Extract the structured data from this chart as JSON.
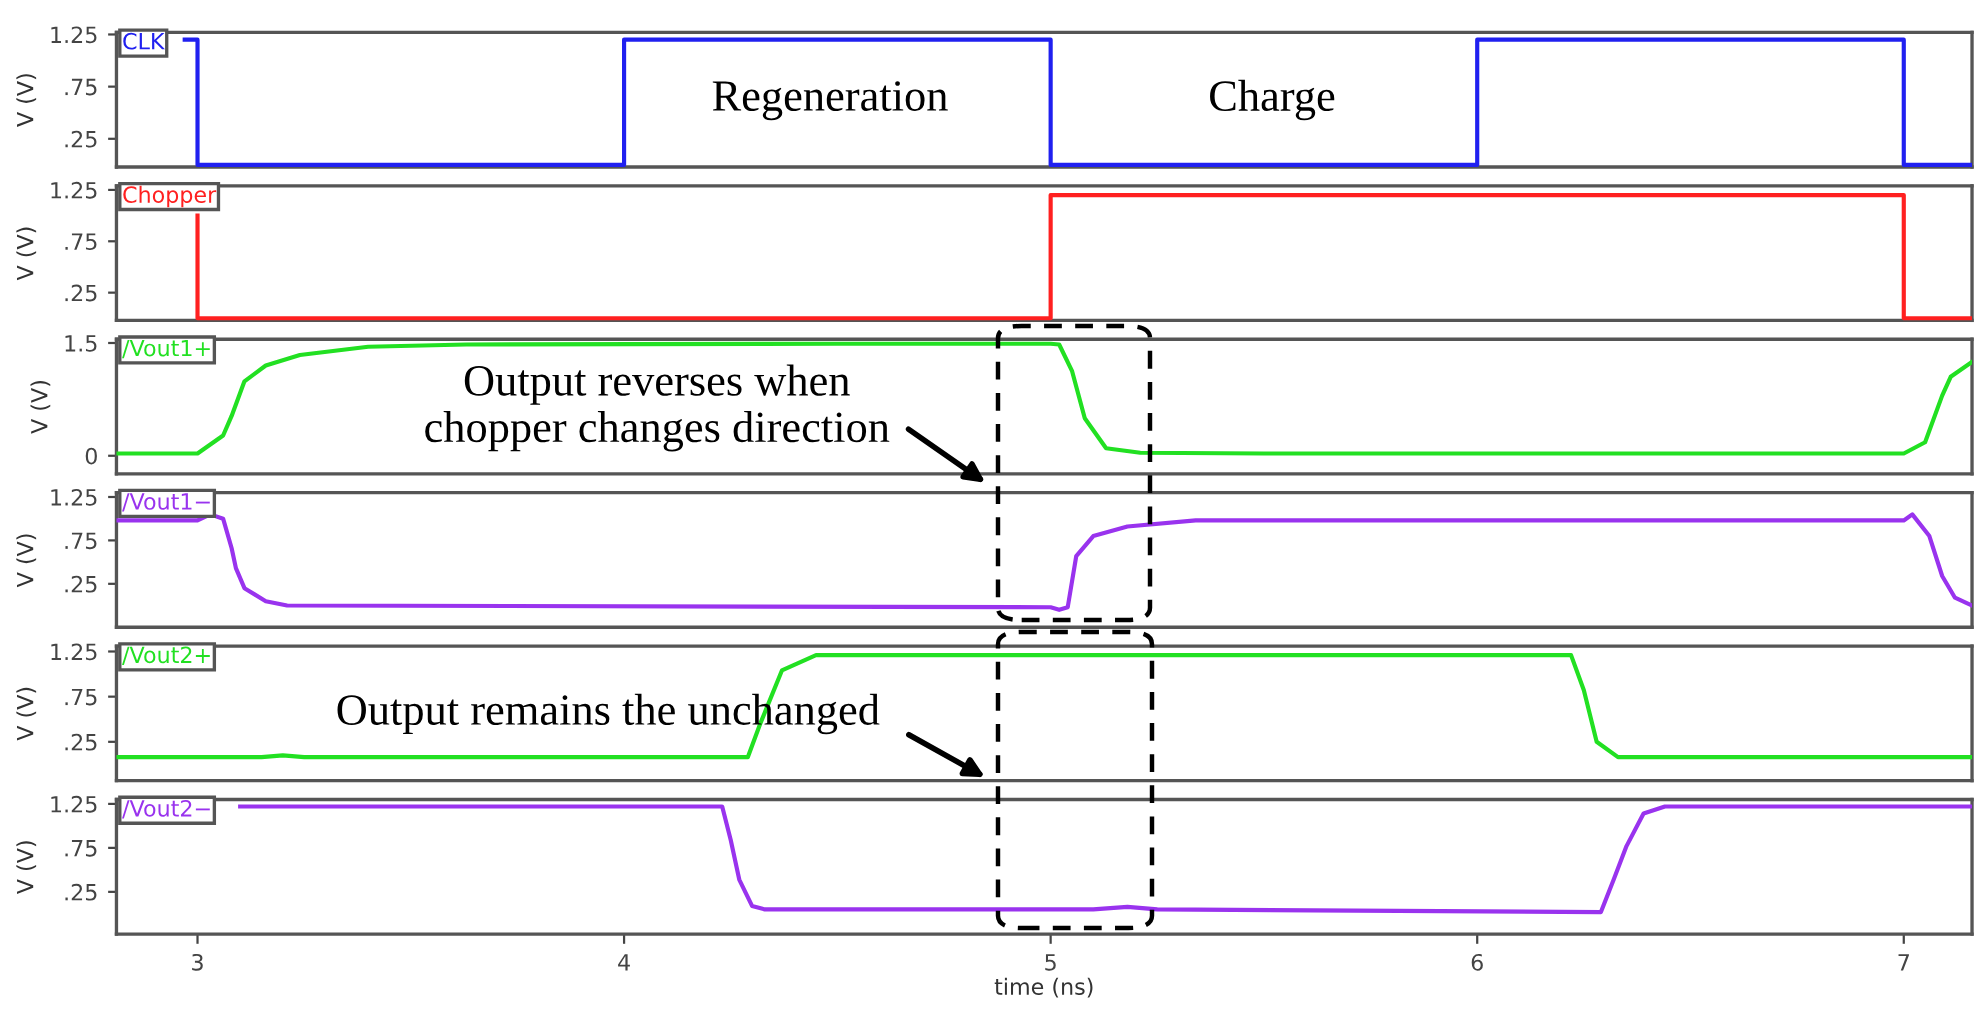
{
  "chart_data": [
    {
      "type": "step",
      "ylabel": "V (V)",
      "xlim": [
        2.81,
        7.16
      ],
      "ylim": [
        -0.02,
        1.27
      ],
      "yticks": [
        {
          "value": 1.25,
          "label": "1.25"
        },
        {
          "value": 0.75,
          "label": ".75"
        },
        {
          "value": 0.25,
          "label": ".25"
        }
      ],
      "tick_labels": "y",
      "grid": false,
      "legend": false,
      "series": [
        {
          "name": "CLK",
          "color": "#2020f0",
          "x": [
            2.97,
            3.0,
            4.0,
            5.0,
            6.0,
            7.0,
            7.16
          ],
          "values": [
            1.2,
            0,
            1.2,
            0,
            1.2,
            0,
            0
          ]
        }
      ],
      "annotations": [
        "Regeneration",
        "Charge"
      ]
    },
    {
      "type": "step",
      "ylabel": "V (V)",
      "xlim": [
        2.81,
        7.16
      ],
      "ylim": [
        -0.02,
        1.29
      ],
      "yticks": [
        {
          "value": 1.25,
          "label": "1.25"
        },
        {
          "value": 0.75,
          "label": ".75"
        },
        {
          "value": 0.25,
          "label": ".25"
        }
      ],
      "tick_labels": "y",
      "grid": false,
      "legend": false,
      "series": [
        {
          "name": "Chopper",
          "color": "#ff2020",
          "x": [
            3.0,
            3.0,
            5.0,
            7.0,
            7.16
          ],
          "values": [
            1.0,
            0,
            1.2,
            0,
            0
          ]
        }
      ]
    },
    {
      "type": "line",
      "ylabel": "V (V)",
      "xlim": [
        2.81,
        7.16
      ],
      "ylim": [
        -0.24,
        1.55
      ],
      "yticks": [
        1.5,
        0
      ],
      "tick_labels": "y",
      "grid": false,
      "legend": false,
      "series": [
        {
          "name": "/Vout1+",
          "color": "#22e022",
          "x": [
            2.81,
            3.0,
            3.06,
            3.08,
            3.11,
            3.16,
            3.24,
            3.4,
            3.63,
            4.5,
            5.0,
            5.02,
            5.05,
            5.08,
            5.13,
            5.21,
            5.5,
            7.0,
            7.05,
            7.09,
            7.11,
            7.16
          ],
          "values": [
            0.03,
            0.03,
            0.27,
            0.53,
            0.99,
            1.2,
            1.34,
            1.45,
            1.48,
            1.49,
            1.49,
            1.48,
            1.13,
            0.5,
            0.1,
            0.04,
            0.03,
            0.03,
            0.18,
            0.8,
            1.05,
            1.25
          ]
        }
      ],
      "annotations": [
        "Output reverses when\nchopper changes direction"
      ]
    },
    {
      "type": "line",
      "ylabel": "V (V)",
      "xlim": [
        2.81,
        7.16
      ],
      "ylim": [
        -0.25,
        1.3
      ],
      "yticks": [
        {
          "value": 1.25,
          "label": "1.25"
        },
        {
          "value": 0.75,
          "label": ".75"
        },
        {
          "value": 0.25,
          "label": ".25"
        }
      ],
      "tick_labels": "y",
      "grid": false,
      "legend": false,
      "series": [
        {
          "name": "/Vout1−",
          "color": "#9933ee",
          "x": [
            2.81,
            3.0,
            3.03,
            3.06,
            3.08,
            3.09,
            3.11,
            3.16,
            3.21,
            5.0,
            5.02,
            5.04,
            5.06,
            5.1,
            5.18,
            5.34,
            7.0,
            7.02,
            7.06,
            7.09,
            7.12,
            7.16
          ],
          "values": [
            0.98,
            0.98,
            1.05,
            1.0,
            0.66,
            0.43,
            0.2,
            0.05,
            0.0,
            -0.02,
            -0.05,
            -0.02,
            0.57,
            0.8,
            0.91,
            0.98,
            0.98,
            1.05,
            0.8,
            0.34,
            0.09,
            0.0
          ]
        }
      ]
    },
    {
      "type": "line",
      "ylabel": "V (V)",
      "xlim": [
        2.81,
        7.16
      ],
      "ylim": [
        -0.18,
        1.31
      ],
      "yticks": [
        {
          "value": 1.25,
          "label": "1.25"
        },
        {
          "value": 0.75,
          "label": ".75"
        },
        {
          "value": 0.25,
          "label": ".25"
        }
      ],
      "tick_labels": "y",
      "grid": false,
      "legend": false,
      "series": [
        {
          "name": "/Vout2+",
          "color": "#22e022",
          "x": [
            2.81,
            3.15,
            3.2,
            3.25,
            4.29,
            4.32,
            4.37,
            4.45,
            6.22,
            6.25,
            6.28,
            6.33,
            7.16
          ],
          "values": [
            0.08,
            0.08,
            0.1,
            0.08,
            0.08,
            0.46,
            1.04,
            1.21,
            1.21,
            0.82,
            0.25,
            0.08,
            0.08
          ]
        }
      ],
      "annotations": [
        "Output remains the unchanged"
      ]
    },
    {
      "type": "line",
      "ylabel": "V (V)",
      "xlabel": "time (ns)",
      "xlim": [
        2.81,
        7.16
      ],
      "ylim": [
        -0.23,
        1.3
      ],
      "xticks": [
        3,
        4,
        5,
        6,
        7
      ],
      "yticks": [
        {
          "value": 1.25,
          "label": "1.25"
        },
        {
          "value": 0.75,
          "label": ".75"
        },
        {
          "value": 0.25,
          "label": ".25"
        }
      ],
      "grid": false,
      "legend": false,
      "series": [
        {
          "name": "/Vout2−",
          "color": "#9933ee",
          "x": [
            3.1,
            4.23,
            4.25,
            4.27,
            4.3,
            4.33,
            5.1,
            5.18,
            5.25,
            6.29,
            6.32,
            6.35,
            6.39,
            6.44,
            7.16
          ],
          "values": [
            1.22,
            1.22,
            0.84,
            0.39,
            0.09,
            0.05,
            0.05,
            0.08,
            0.05,
            0.02,
            0.39,
            0.77,
            1.14,
            1.22,
            1.22
          ]
        }
      ]
    }
  ]
}
